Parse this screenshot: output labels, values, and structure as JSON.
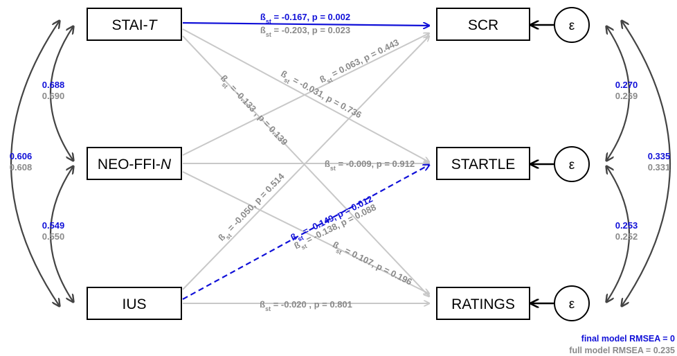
{
  "colors": {
    "significant": "#1010d8",
    "nonsignificant": "#8a8a8a",
    "path_light": "#c8c8c8",
    "covariance": "#444444",
    "node_border": "#000000"
  },
  "nodes": {
    "stai": {
      "label": "STAI-",
      "label_italic": "T"
    },
    "neo": {
      "label": "NEO-FFI-",
      "label_italic": "N"
    },
    "ius": {
      "label": "IUS"
    },
    "scr": {
      "label": "SCR"
    },
    "startle": {
      "label": "STARTLE"
    },
    "ratings": {
      "label": "RATINGS"
    }
  },
  "error_terms": {
    "scr": "ε",
    "startle": "ε",
    "ratings": "ε"
  },
  "beta_symbol": "ß",
  "beta_sub": "st",
  "paths": {
    "stai_scr_final": " = -0.167, p = 0.002",
    "stai_scr_full": " = -0.203, p = 0.023",
    "stai_startle": " = -0.031, p = 0.736",
    "stai_ratings": " = -0.133 , p = 0.139",
    "neo_scr": " = 0.063, p = 0.443",
    "neo_startle": " = -0.009, p = 0.912",
    "neo_ratings": " = -0.138, p = 0.088",
    "ius_scr": " = -0.050, p = 0.514",
    "ius_startle_final": " = -0.149, p = 0.012",
    "ius_ratings_full": " = 0.107, p = 0.196",
    "ius_ratings_direct": " = -0.020 , p = 0.801"
  },
  "covariances": {
    "stai_neo": {
      "final": "0.688",
      "full": "0.690"
    },
    "stai_ius": {
      "final": "0.606",
      "full": "0.608"
    },
    "neo_ius": {
      "final": "0.549",
      "full": "0.550"
    },
    "scr_startle": {
      "final": "0.270",
      "full": "0.269"
    },
    "startle_ratings": {
      "final": "0.253",
      "full": "0.252"
    },
    "scr_ratings": {
      "final": "0.335",
      "full": "0.331"
    }
  },
  "fit": {
    "final": "final model RMSEA = 0",
    "full": "full model RMSEA = 0.235"
  }
}
